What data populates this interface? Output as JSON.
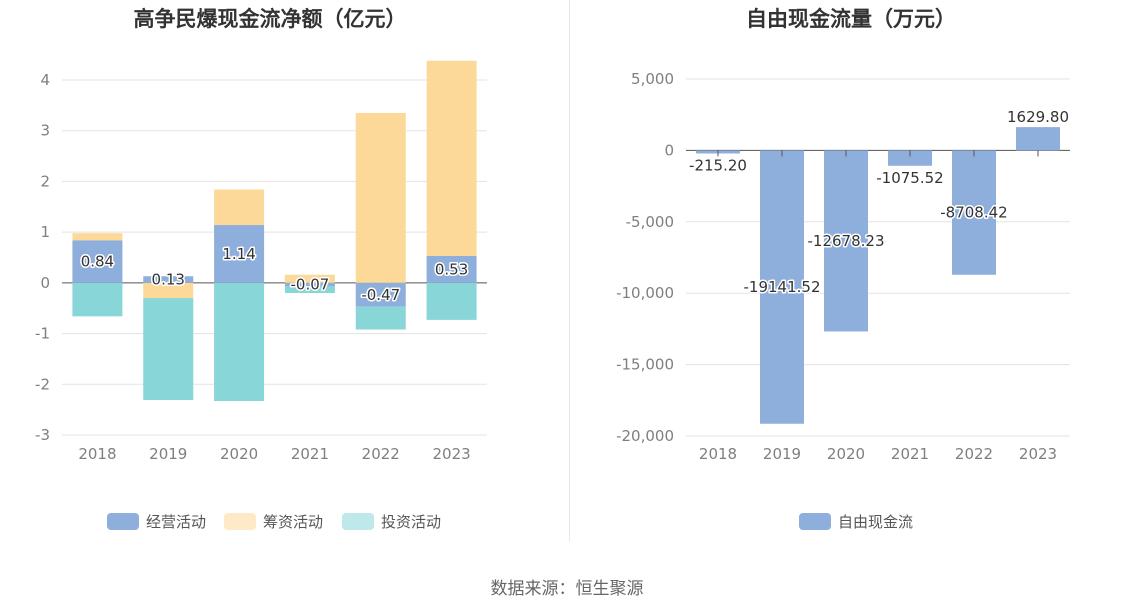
{
  "source": "数据来源：恒生聚源",
  "chart_data": [
    {
      "type": "bar",
      "stacked": true,
      "title": "高争民爆现金流净额（亿元）",
      "categories": [
        "2018",
        "2019",
        "2020",
        "2021",
        "2022",
        "2023"
      ],
      "ylim": [
        -3,
        4
      ],
      "yticks": [
        "4",
        "3",
        "2",
        "1",
        "0",
        "-1",
        "-2",
        "-3"
      ],
      "grid": true,
      "legend_position": "bottom",
      "series": [
        {
          "name": "经营活动",
          "color": "#8eaedc",
          "values": [
            0.84,
            0.13,
            1.14,
            -0.07,
            -0.47,
            0.53
          ],
          "labels": [
            "0.84",
            "0.13",
            "1.14",
            "-0.07",
            "-0.47",
            "0.53"
          ]
        },
        {
          "name": "筹资活动",
          "color": "#fdd999",
          "values": [
            0.14,
            -0.3,
            0.7,
            0.16,
            3.35,
            3.85
          ]
        },
        {
          "name": "投资活动",
          "color": "#88d6d8",
          "values": [
            -0.66,
            -2.01,
            -2.33,
            -0.13,
            -0.45,
            -0.73
          ]
        }
      ]
    },
    {
      "type": "bar",
      "title": "自由现金流量（万元）",
      "categories": [
        "2018",
        "2019",
        "2020",
        "2021",
        "2022",
        "2023"
      ],
      "ylim": [
        -20000,
        5000
      ],
      "yticks": [
        "5,000",
        "0",
        "-5,000",
        "-10,000",
        "-15,000",
        "-20,000"
      ],
      "grid": true,
      "legend_position": "bottom",
      "series": [
        {
          "name": "自由现金流",
          "color": "#8eaedc",
          "values": [
            -215.2,
            -19141.52,
            -12678.23,
            -1075.52,
            -8708.42,
            1629.8
          ],
          "labels": [
            "-215.20",
            "-19141.52",
            "-12678.23",
            "-1075.52",
            "-8708.42",
            "1629.80"
          ]
        }
      ]
    }
  ]
}
